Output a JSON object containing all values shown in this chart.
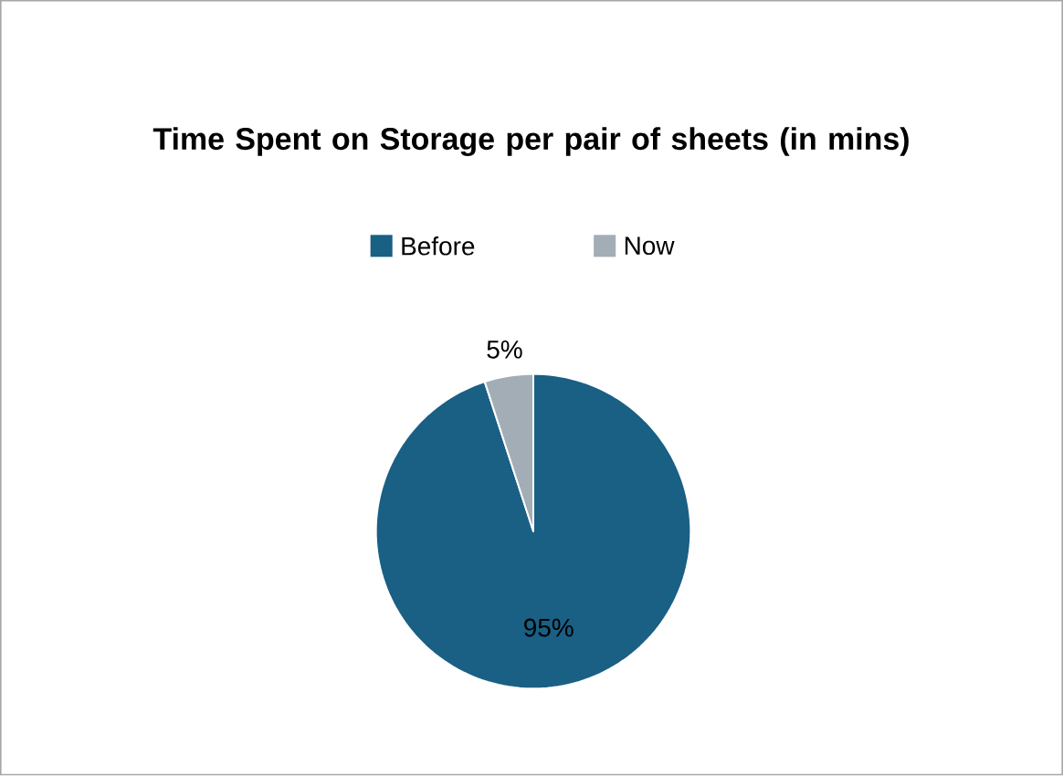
{
  "chart_data": {
    "type": "pie",
    "title": "Time Spent on Storage per pair of sheets (in mins)",
    "categories": [
      "Before",
      "Now"
    ],
    "values": [
      95,
      5
    ],
    "value_labels": [
      "95%",
      "5%"
    ],
    "colors": [
      "#1a5f84",
      "#a3adb6"
    ],
    "legend": "top"
  }
}
